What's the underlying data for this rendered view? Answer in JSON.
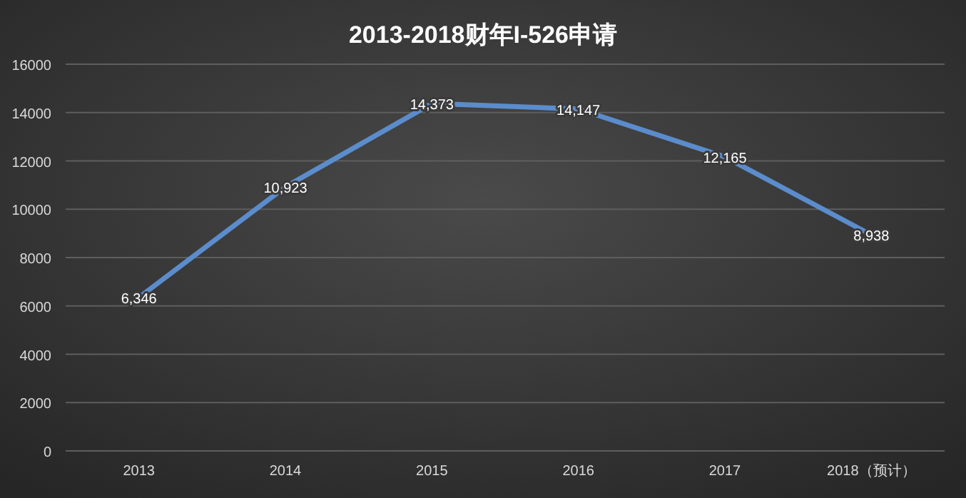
{
  "chart_data": {
    "type": "line",
    "title": "2013-2018财年I-526申请",
    "categories": [
      "2013",
      "2014",
      "2015",
      "2016",
      "2017",
      "2018（预计）"
    ],
    "values": [
      6346,
      10923,
      14373,
      14147,
      12165,
      8938
    ],
    "value_labels": [
      "6,346",
      "10,923",
      "14,373",
      "14,147",
      "12,165",
      "8,938"
    ],
    "color": "#5b8ccc",
    "ylim": [
      0,
      16000
    ],
    "yticks": [
      0,
      2000,
      4000,
      6000,
      8000,
      10000,
      12000,
      14000,
      16000
    ],
    "grid": "y",
    "marker": "none"
  }
}
